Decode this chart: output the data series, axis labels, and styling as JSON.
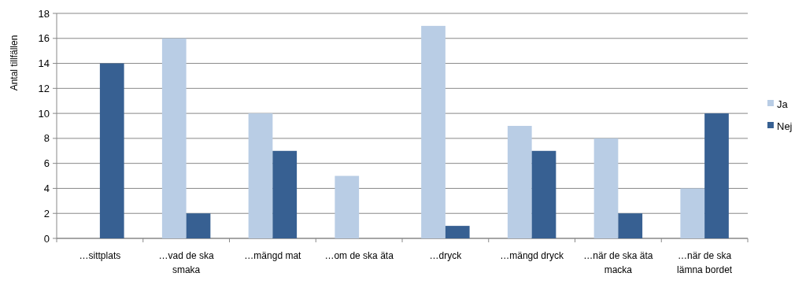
{
  "chart_data": {
    "type": "bar",
    "ylabel": "Antal tillfällen",
    "categories": [
      "…sittplats",
      "…vad de ska smaka",
      "…mängd mat",
      "…om de ska äta",
      "…dryck",
      "…mängd dryck",
      "…när de ska äta macka",
      "…när de ska lämna bordet"
    ],
    "series": [
      {
        "name": "Ja",
        "color": "#b9cde5",
        "values": [
          0,
          16,
          10,
          5,
          17,
          9,
          8,
          4
        ]
      },
      {
        "name": "Nej",
        "color": "#376092",
        "values": [
          14,
          2,
          7,
          0,
          1,
          7,
          2,
          10
        ]
      }
    ],
    "ylim": [
      0,
      18
    ],
    "yticks": [
      0,
      2,
      4,
      6,
      8,
      10,
      12,
      14,
      16,
      18
    ],
    "grid": "y",
    "legend": "right"
  }
}
